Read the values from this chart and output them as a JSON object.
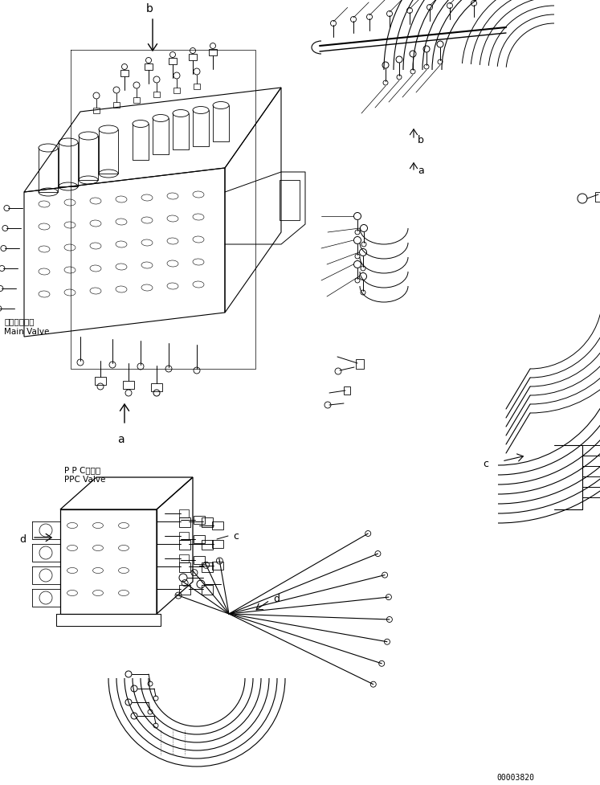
{
  "part_number": "00003820",
  "background_color": "#ffffff",
  "line_color": "#000000",
  "labels": {
    "main_valve_ja": "メインバルブ",
    "main_valve_en": "Main Valve",
    "ppc_valve_ja": "P P Cバルブ",
    "ppc_valve_en": "PPC Valve",
    "label_a": "a",
    "label_b": "b",
    "label_c": "c",
    "label_d": "d"
  },
  "figsize": [
    7.47,
    9.78
  ],
  "dpi": 100
}
